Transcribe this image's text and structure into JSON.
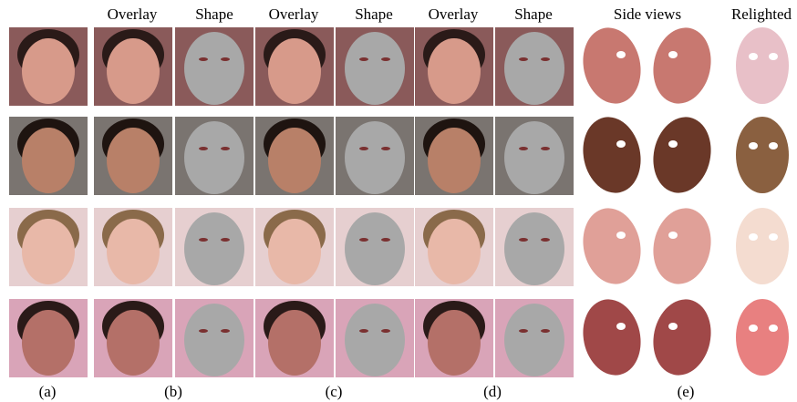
{
  "header": {
    "labels": [
      "Overlay",
      "Shape",
      "Overlay",
      "Shape",
      "Overlay",
      "Shape",
      "Side views",
      "Relighted"
    ]
  },
  "captions": [
    "(a)",
    "(b)",
    "(c)",
    "(d)",
    "(e)"
  ]
}
